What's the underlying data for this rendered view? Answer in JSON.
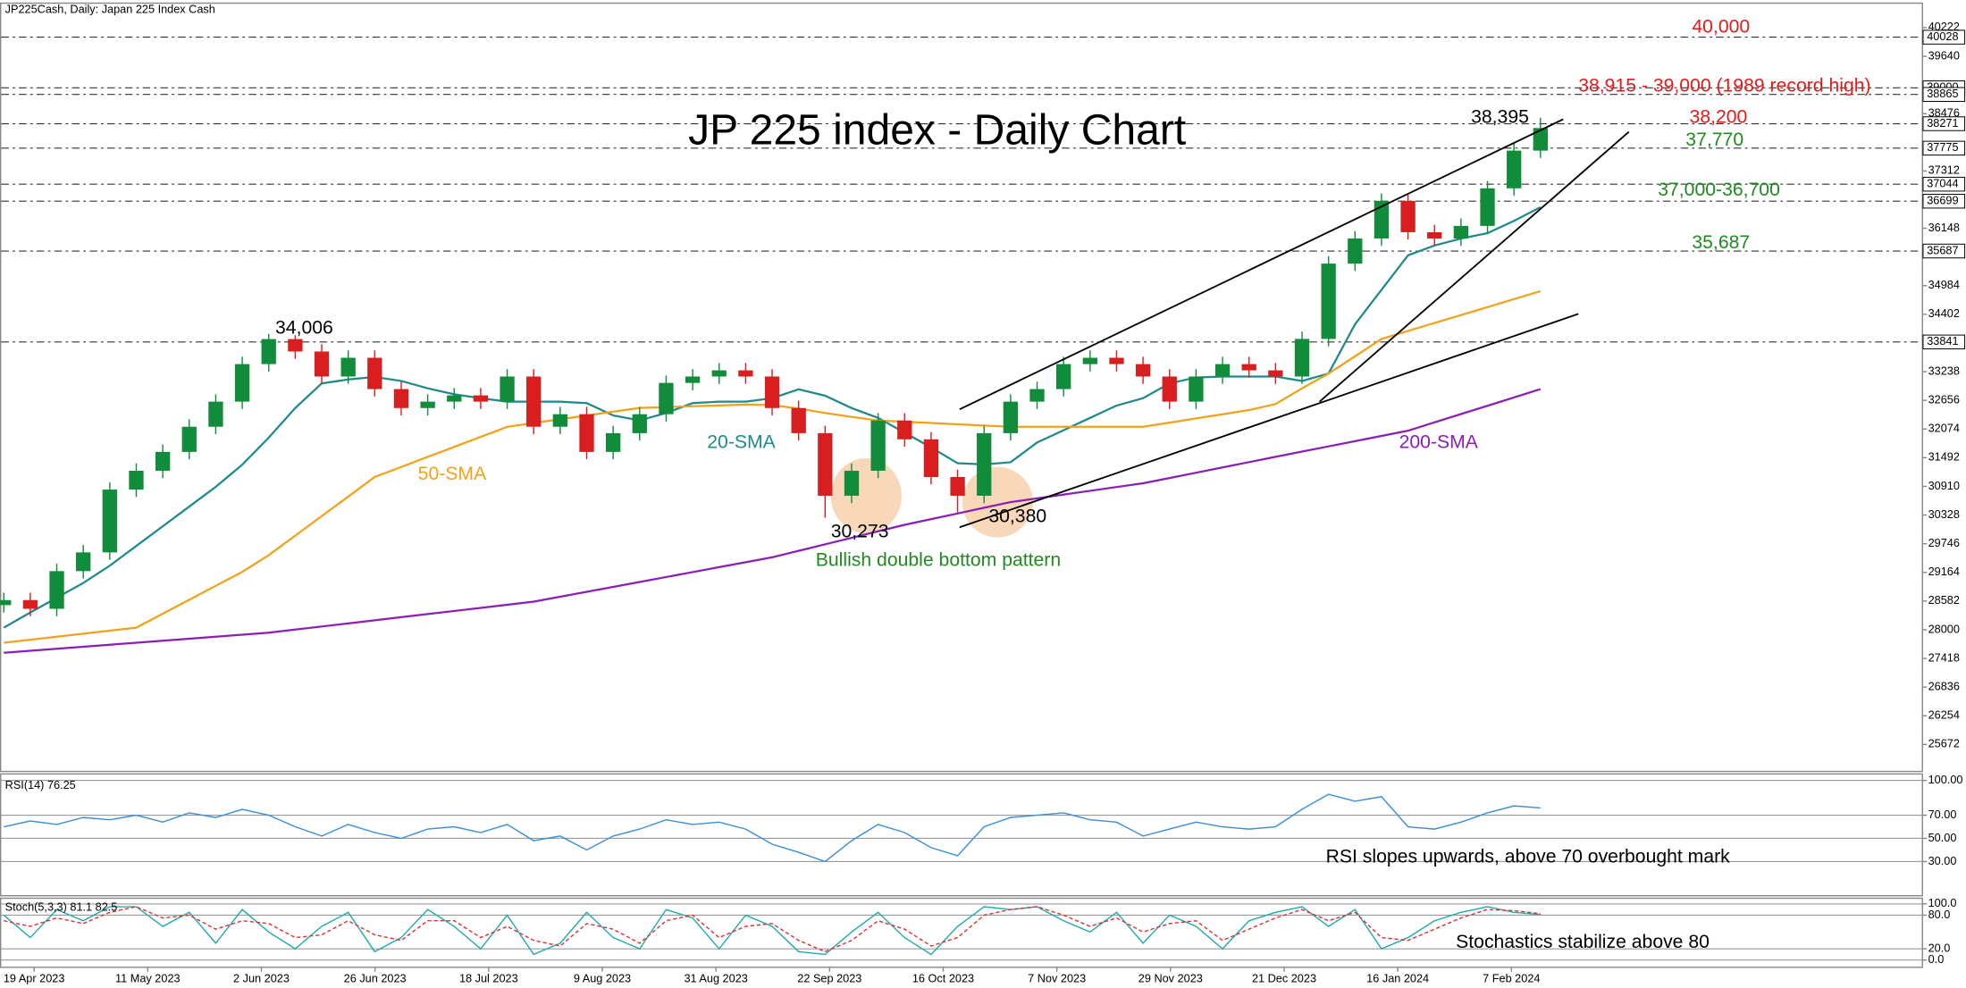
{
  "chart_data": [
    {
      "type": "candlestick",
      "header": "JP225Cash, Daily:  Japan 225 Index Cash",
      "title": "JP 225 index - Daily Chart",
      "x_labels": [
        "19 Apr 2023",
        "11 May 2023",
        "2 Jun 2023",
        "26 Jun 2023",
        "18 Jul 2023",
        "9 Aug 2023",
        "31 Aug 2023",
        "22 Sep 2023",
        "16 Oct 2023",
        "7 Nov 2023",
        "29 Nov 2023",
        "21 Dec 2023",
        "16 Jan 2024",
        "7 Feb 2024"
      ],
      "open": [
        28500,
        28602,
        28425,
        29190,
        29570,
        30845,
        31227,
        31610,
        32120,
        32630,
        33392,
        33900,
        33648,
        33140,
        33520,
        32885,
        32500,
        32630,
        32757,
        32630,
        33140,
        32120,
        32375,
        31610,
        31990,
        32375,
        33010,
        33140,
        33265,
        33140,
        32500,
        31990,
        30720,
        31227,
        32247,
        31865,
        31100,
        30720,
        31990,
        32630,
        32885,
        33392,
        33520,
        33392,
        33140,
        32630,
        33140,
        33392,
        33265,
        33140,
        33903,
        35432,
        35942,
        36706,
        36069,
        35942,
        36197,
        36960,
        37725
      ],
      "high": [
        28752,
        28752,
        29340,
        29720,
        30995,
        31377,
        31760,
        32270,
        32780,
        33542,
        34006,
        33980,
        33798,
        33670,
        33670,
        33035,
        32780,
        32907,
        32907,
        33290,
        33290,
        32525,
        32525,
        32140,
        32525,
        33160,
        33290,
        33415,
        33415,
        33290,
        32650,
        32140,
        31377,
        32397,
        32397,
        32015,
        31250,
        32140,
        32780,
        33035,
        33542,
        33670,
        33670,
        33542,
        33290,
        33290,
        33542,
        33542,
        33415,
        34053,
        35582,
        36092,
        36856,
        36856,
        36219,
        36347,
        37110,
        37875,
        38395
      ],
      "low": [
        28350,
        28275,
        28275,
        29040,
        29420,
        30695,
        31077,
        31460,
        31970,
        32480,
        33242,
        33498,
        32990,
        32990,
        32735,
        32350,
        32350,
        32480,
        32480,
        32480,
        31970,
        31970,
        31460,
        31460,
        31840,
        32225,
        32860,
        32990,
        32990,
        32350,
        31840,
        30273,
        30570,
        31077,
        31715,
        30950,
        30380,
        30570,
        31840,
        32480,
        32735,
        33242,
        33242,
        32990,
        32480,
        32480,
        32990,
        33115,
        32990,
        32990,
        33753,
        35282,
        35792,
        35919,
        35792,
        35792,
        36047,
        36810,
        37575
      ],
      "close": [
        28602,
        28425,
        29190,
        29570,
        30845,
        31227,
        31610,
        32120,
        32630,
        33392,
        33900,
        33648,
        33140,
        33520,
        32885,
        32500,
        32630,
        32757,
        32630,
        33140,
        32120,
        32375,
        31610,
        31990,
        32375,
        33010,
        33140,
        33265,
        33140,
        32500,
        31990,
        30720,
        31227,
        32247,
        31865,
        31100,
        30720,
        31990,
        32630,
        32885,
        33392,
        33520,
        33392,
        33140,
        32630,
        33140,
        33392,
        33265,
        33140,
        33903,
        35432,
        35942,
        36706,
        36069,
        35942,
        36197,
        36960,
        37725,
        38184
      ],
      "up_color": "#118c3a",
      "down_color": "#d81e1e",
      "series": [
        {
          "name": "20-SMA",
          "color": "#1f8a8a",
          "values": [
            28042,
            28350,
            28650,
            28950,
            29300,
            29700,
            30100,
            30500,
            30900,
            31350,
            31900,
            32500,
            33000,
            33080,
            33130,
            33050,
            32900,
            32780,
            32700,
            32630,
            32630,
            32630,
            32600,
            32350,
            32250,
            32400,
            32600,
            32630,
            32630,
            32700,
            32880,
            32750,
            32500,
            32300,
            32000,
            31700,
            31380,
            31355,
            31400,
            31800,
            32050,
            32300,
            32550,
            32700,
            33000,
            33120,
            33140,
            33140,
            33140,
            33050,
            33200,
            34200,
            34900,
            35600,
            35800,
            35940,
            36050,
            36300,
            36578
          ]
        },
        {
          "name": "50-SMA",
          "color": "#f2a218",
          "values": [
            27737,
            27798,
            27859,
            27920,
            27981,
            28042,
            28325,
            28608,
            28891,
            29174,
            29514,
            29910,
            30306,
            30702,
            31100,
            31304,
            31508,
            31711,
            31915,
            32119,
            32196,
            32272,
            32349,
            32425,
            32502,
            32519,
            32536,
            32553,
            32570,
            32560,
            32490,
            32400,
            32320,
            32247,
            32221,
            32196,
            32170,
            32145,
            32119,
            32119,
            32119,
            32119,
            32119,
            32119,
            32204,
            32289,
            32374,
            32459,
            32580,
            32900,
            33200,
            33550,
            33903,
            34065,
            34226,
            34388,
            34549,
            34711,
            34872
          ]
        },
        {
          "name": "200-SMA",
          "color": "#8b1fb5",
          "values": [
            27533,
            27574,
            27614,
            27655,
            27696,
            27737,
            27777,
            27818,
            27859,
            27899,
            27940,
            28003,
            28066,
            28129,
            28192,
            28255,
            28318,
            28381,
            28444,
            28507,
            28570,
            28670,
            28770,
            28870,
            28970,
            29070,
            29170,
            29270,
            29370,
            29470,
            29602,
            29734,
            29866,
            29998,
            30130,
            30245,
            30360,
            30476,
            30591,
            30667,
            30744,
            30820,
            30897,
            30973,
            31080,
            31187,
            31295,
            31402,
            31510,
            31616,
            31722,
            31828,
            31934,
            32040,
            32209,
            32378,
            32546,
            32715,
            32884
          ]
        }
      ],
      "ylim": [
        25111,
        40706
      ],
      "yticks": [
        40222,
        39640,
        38476,
        37312,
        36148,
        34984,
        34402,
        33238,
        32656,
        32074,
        31492,
        30910,
        30328,
        29746,
        29164,
        28582,
        28000,
        27418,
        26836,
        26254,
        25672
      ],
      "levels": [
        40028,
        39000,
        38865,
        38271,
        37775,
        37044,
        36699,
        35687,
        33841
      ],
      "annotations": [
        "40,000",
        "38,915 - 39,000 (1989 record high)",
        "38,395",
        "38,200",
        "37,770",
        "37,000-36,700",
        "35,687",
        "34,006",
        "30,273",
        "30,380",
        "Bullish double bottom pattern"
      ]
    },
    {
      "type": "line",
      "title": "RSI(14) 76.25",
      "series": [
        {
          "color": "#3a8fd8",
          "values": [
            60,
            65,
            62,
            68,
            66,
            70,
            64,
            72,
            68,
            75,
            70,
            60,
            52,
            62,
            55,
            50,
            58,
            60,
            55,
            62,
            48,
            52,
            40,
            52,
            58,
            66,
            62,
            64,
            58,
            45,
            38,
            30,
            48,
            62,
            55,
            42,
            35,
            60,
            68,
            70,
            72,
            66,
            64,
            52,
            58,
            64,
            60,
            58,
            60,
            75,
            88,
            82,
            86,
            60,
            58,
            64,
            72,
            78,
            76.25
          ]
        }
      ],
      "ylim": [
        0,
        105
      ],
      "yticks": [
        {
          "value": 100,
          "label": "100.00"
        },
        {
          "value": 70,
          "label": "70.00"
        },
        {
          "value": 50,
          "label": "50.00"
        },
        {
          "value": 30,
          "label": "30.00"
        }
      ],
      "grid": true,
      "note": "RSI slopes upwards, above 70 overbought mark"
    },
    {
      "type": "line",
      "title": "Stoch(5,3,3) 81.1 82.5",
      "series": [
        {
          "color": "#20aaaa",
          "values": [
            80,
            40,
            90,
            70,
            95,
            95,
            60,
            85,
            30,
            90,
            50,
            20,
            60,
            85,
            15,
            40,
            90,
            60,
            20,
            80,
            10,
            30,
            85,
            40,
            20,
            90,
            75,
            20,
            80,
            60,
            15,
            10,
            50,
            85,
            40,
            10,
            60,
            95,
            90,
            95,
            70,
            50,
            85,
            30,
            80,
            60,
            20,
            70,
            85,
            95,
            60,
            90,
            20,
            40,
            70,
            85,
            95,
            85,
            81.1
          ]
        },
        {
          "color": "#e03030",
          "dashed": true,
          "values": [
            70,
            60,
            75,
            65,
            85,
            95,
            75,
            80,
            55,
            70,
            65,
            40,
            45,
            70,
            45,
            35,
            70,
            70,
            40,
            60,
            35,
            25,
            65,
            55,
            30,
            70,
            80,
            40,
            60,
            65,
            35,
            15,
            35,
            70,
            55,
            25,
            40,
            80,
            90,
            95,
            80,
            60,
            75,
            50,
            65,
            70,
            35,
            55,
            75,
            90,
            70,
            85,
            40,
            35,
            55,
            75,
            90,
            88,
            82.5
          ]
        }
      ],
      "ylim": [
        -14,
        109
      ],
      "yticks": [
        {
          "value": 100,
          "label": "100.0"
        },
        {
          "value": 80,
          "label": "80.0"
        },
        {
          "value": 20,
          "label": "20.0"
        },
        {
          "value": 0,
          "label": "0.0"
        }
      ],
      "grid": true,
      "note": "Stochastics stabilize above 80"
    }
  ]
}
